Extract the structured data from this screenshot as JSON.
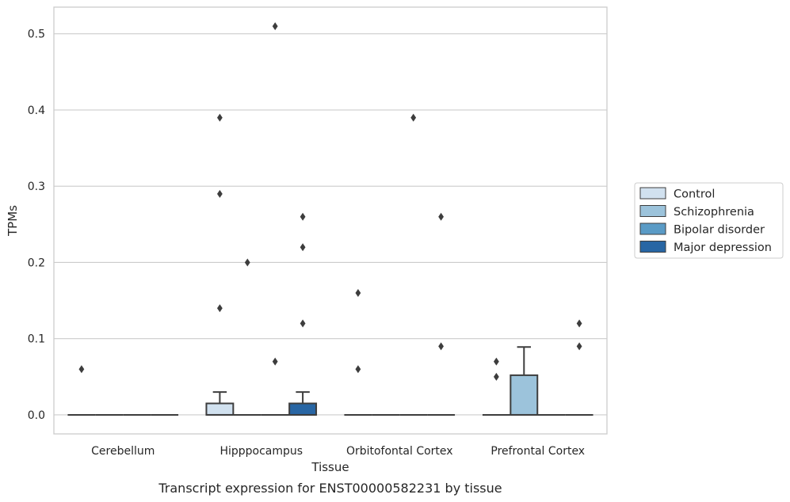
{
  "chart_data": {
    "type": "box",
    "title": "",
    "caption": "Transcript expression for ENST00000582231 by tissue",
    "xlabel": "Tissue",
    "ylabel": "TPMs",
    "ylim": [
      -0.025,
      0.535
    ],
    "yticks": [
      0.0,
      0.1,
      0.2,
      0.3,
      0.4,
      0.5
    ],
    "ytick_labels": [
      "0.0",
      "0.1",
      "0.2",
      "0.3",
      "0.4",
      "0.5"
    ],
    "grid": "horizontal",
    "legend_position": "right",
    "categories": [
      "Cerebellum",
      "Hipppocampus",
      "Orbitofontal Cortex",
      "Prefrontal Cortex"
    ],
    "series": [
      {
        "name": "Control",
        "color": "#d1e1ef",
        "boxes": [
          {
            "q1": 0,
            "median": 0,
            "q3": 0,
            "whisker_low": 0,
            "whisker_high": 0,
            "outliers": [
              0.06
            ]
          },
          {
            "q1": 0,
            "median": 0,
            "q3": 0.015,
            "whisker_low": 0,
            "whisker_high": 0.03,
            "outliers": [
              0.39,
              0.29,
              0.14
            ]
          },
          {
            "q1": 0,
            "median": 0,
            "q3": 0,
            "whisker_low": 0,
            "whisker_high": 0,
            "outliers": [
              0.16,
              0.06
            ]
          },
          {
            "q1": 0,
            "median": 0,
            "q3": 0,
            "whisker_low": 0,
            "whisker_high": 0,
            "outliers": [
              0.07,
              0.05
            ]
          }
        ]
      },
      {
        "name": "Schizophrenia",
        "color": "#9cc3db",
        "boxes": [
          {
            "q1": 0,
            "median": 0,
            "q3": 0,
            "whisker_low": 0,
            "whisker_high": 0,
            "outliers": []
          },
          {
            "q1": 0,
            "median": 0,
            "q3": 0,
            "whisker_low": 0,
            "whisker_high": 0,
            "outliers": [
              0.2
            ]
          },
          {
            "q1": 0,
            "median": 0,
            "q3": 0,
            "whisker_low": 0,
            "whisker_high": 0,
            "outliers": []
          },
          {
            "q1": 0,
            "median": 0,
            "q3": 0.052,
            "whisker_low": 0,
            "whisker_high": 0.089,
            "outliers": []
          }
        ]
      },
      {
        "name": "Bipolar disorder",
        "color": "#5a9bc6",
        "boxes": [
          {
            "q1": 0,
            "median": 0,
            "q3": 0,
            "whisker_low": 0,
            "whisker_high": 0,
            "outliers": []
          },
          {
            "q1": 0,
            "median": 0,
            "q3": 0,
            "whisker_low": 0,
            "whisker_high": 0,
            "outliers": [
              0.51,
              0.07
            ]
          },
          {
            "q1": 0,
            "median": 0,
            "q3": 0,
            "whisker_low": 0,
            "whisker_high": 0,
            "outliers": [
              0.39
            ]
          },
          {
            "q1": 0,
            "median": 0,
            "q3": 0,
            "whisker_low": 0,
            "whisker_high": 0,
            "outliers": []
          }
        ]
      },
      {
        "name": "Major depression",
        "color": "#2866a4",
        "boxes": [
          {
            "q1": 0,
            "median": 0,
            "q3": 0,
            "whisker_low": 0,
            "whisker_high": 0,
            "outliers": []
          },
          {
            "q1": 0,
            "median": 0,
            "q3": 0.015,
            "whisker_low": 0,
            "whisker_high": 0.03,
            "outliers": [
              0.26,
              0.22,
              0.12
            ]
          },
          {
            "q1": 0,
            "median": 0,
            "q3": 0,
            "whisker_low": 0,
            "whisker_high": 0,
            "outliers": [
              0.26,
              0.09
            ]
          },
          {
            "q1": 0,
            "median": 0,
            "q3": 0,
            "whisker_low": 0,
            "whisker_high": 0,
            "outliers": [
              0.12,
              0.09
            ]
          }
        ]
      }
    ]
  }
}
